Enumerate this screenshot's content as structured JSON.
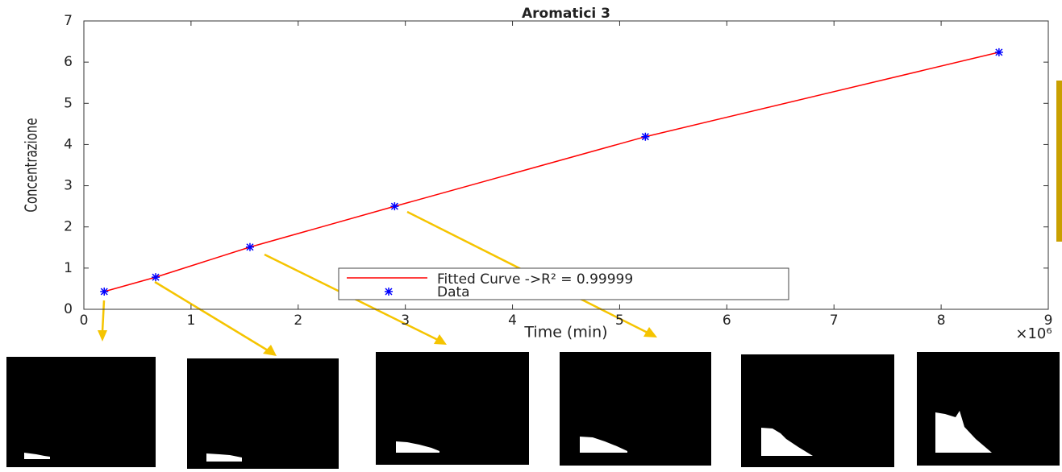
{
  "chart_data": {
    "type": "scatter",
    "title": "Aromatici 3",
    "x_label": "Time (min)",
    "y_label": "Concentrazione",
    "x_multiplier": "×10⁶",
    "xlim": [
      0,
      9
    ],
    "xticks": [
      0,
      1,
      2,
      3,
      4,
      5,
      6,
      7,
      8,
      9
    ],
    "ylim": [
      0,
      7
    ],
    "yticks": [
      0,
      1,
      2,
      3,
      4,
      5,
      6,
      7
    ],
    "legend": "lower-center",
    "series": [
      {
        "name": "Fitted Curve ->R² = 0.99999",
        "kind": "line",
        "color": "#ff0000",
        "x": [
          0.19,
          0.67,
          1.55,
          2.9,
          5.24,
          8.54
        ],
        "values": [
          0.43,
          0.78,
          1.51,
          2.5,
          4.19,
          6.24
        ]
      },
      {
        "name": "Data",
        "kind": "marker",
        "color": "#0000ff",
        "x": [
          0.19,
          0.67,
          1.55,
          2.9,
          5.24,
          8.54
        ],
        "values": [
          0.43,
          0.78,
          1.51,
          2.5,
          4.19,
          6.24
        ]
      }
    ]
  }
}
